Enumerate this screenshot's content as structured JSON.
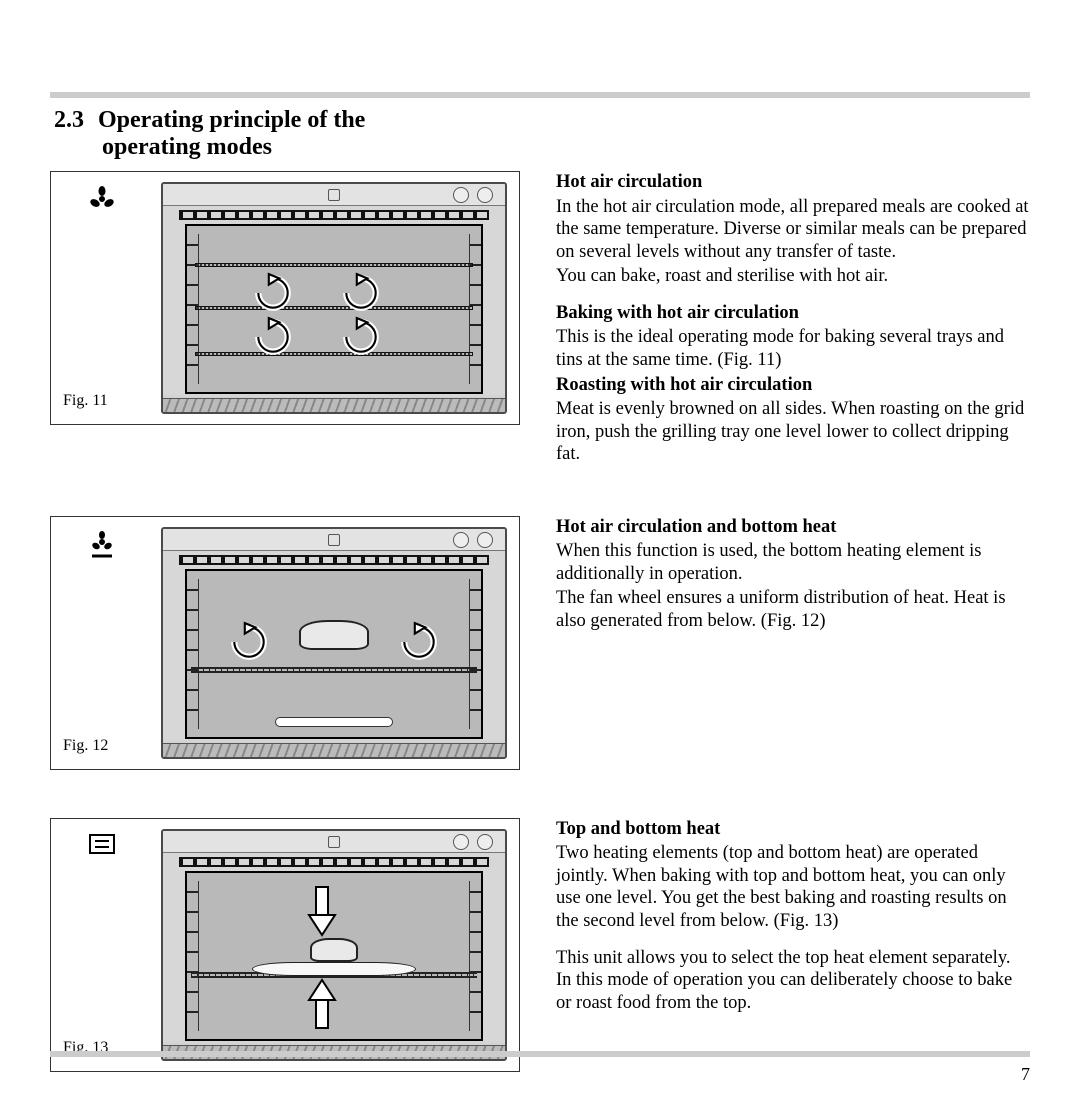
{
  "page_number": "7",
  "heading": {
    "number": "2.3",
    "line1": "Operating principle of the",
    "line2": "operating modes"
  },
  "rules_color": "#cccccc",
  "text_color": "#000000",
  "sections": [
    {
      "fig_label": "Fig. 11",
      "mode_icon": "fan",
      "blocks": [
        {
          "type": "h",
          "text": "Hot air circulation"
        },
        {
          "type": "p",
          "text": "In the hot air circulation mode, all prepared meals are cooked at the same temperature. Diverse or similar meals can be prepared on several levels without any transfer of taste."
        },
        {
          "type": "p",
          "text": "You can bake, roast and sterilise with hot air."
        },
        {
          "type": "h",
          "text": "Baking with hot air circulation",
          "spaced": true
        },
        {
          "type": "p",
          "text": "This is the ideal operating mode for baking several trays and tins at the same time. (Fig. 11)"
        },
        {
          "type": "h",
          "text": "Roasting with hot air circulation"
        },
        {
          "type": "p",
          "text": "Meat is evenly browned on all sides. When roasting on the grid iron, push the grilling tray one level lower to collect dripping fat."
        }
      ],
      "oven_style": "three-trays-swirls"
    },
    {
      "fig_label": "Fig. 12",
      "mode_icon": "fan-bottom",
      "blocks": [
        {
          "type": "h",
          "text": "Hot air circulation and bottom heat"
        },
        {
          "type": "p",
          "text": "When this function is used, the bottom heating element is additionally in operation."
        },
        {
          "type": "p",
          "text": "The fan wheel ensures a uniform distribution of heat. Heat is also generated from below. (Fig. 12)"
        }
      ],
      "oven_style": "single-rack-loaf"
    },
    {
      "fig_label": "Fig. 13",
      "mode_icon": "top-bottom",
      "blocks": [
        {
          "type": "h",
          "text": "Top and bottom heat"
        },
        {
          "type": "p",
          "text": "Two heating elements (top and bottom heat) are operated jointly. When baking with top and bottom heat, you can only use one level. You get the best baking and roasting results on the second level from below. (Fig. 13)"
        },
        {
          "type": "p",
          "text": "This unit allows you to select the top heat element separately. In this mode of operation you can deliberately choose to bake or roast food from the top.",
          "spaced": true
        }
      ],
      "oven_style": "top-bottom-arrows"
    }
  ]
}
